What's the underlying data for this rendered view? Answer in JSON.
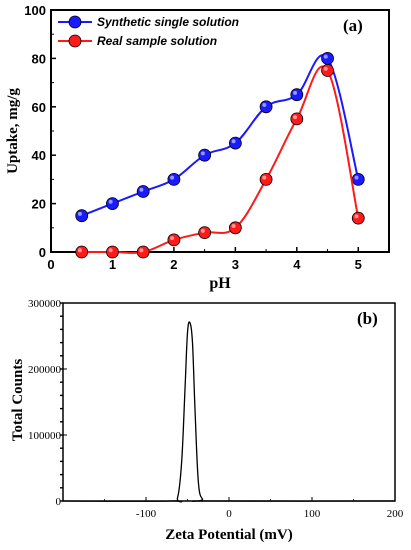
{
  "chart_data": [
    {
      "type": "line",
      "panel_label": "(a)",
      "xlabel": "pH",
      "ylabel": "Uptake, mg/g",
      "xlim": [
        0,
        5.5
      ],
      "ylim": [
        0,
        100
      ],
      "x_ticks": [
        0,
        1,
        2,
        3,
        4,
        5
      ],
      "y_ticks": [
        0,
        20,
        40,
        60,
        80,
        100
      ],
      "legend_position": "top-left",
      "series": [
        {
          "name": "Synthetic single solution",
          "color": "#1a1aff",
          "x": [
            0.5,
            1,
            1.5,
            2,
            2.5,
            3,
            3.5,
            4,
            4.5,
            5
          ],
          "y": [
            15,
            20,
            25,
            30,
            40,
            45,
            60,
            65,
            80,
            30
          ]
        },
        {
          "name": "Real sample solution",
          "color": "#ff1a1a",
          "x": [
            0.5,
            1,
            1.5,
            2,
            2.5,
            3,
            3.5,
            4,
            4.5,
            5
          ],
          "y": [
            0,
            0,
            0,
            5,
            8,
            10,
            30,
            55,
            75,
            14
          ]
        }
      ]
    },
    {
      "type": "line",
      "panel_label": "(b)",
      "xlabel": "Zeta Potential (mV)",
      "ylabel": "Total Counts",
      "xlim": [
        -200,
        200
      ],
      "ylim": [
        0,
        300000
      ],
      "x_ticks": [
        -100,
        0,
        100,
        200
      ],
      "y_ticks": [
        0,
        100000,
        200000,
        300000
      ],
      "series": [
        {
          "color": "#000000",
          "x": [
            -200,
            -70,
            -62,
            -57,
            -53,
            -50,
            -47,
            -44,
            -41,
            -37,
            -32,
            -24,
            200
          ],
          "y": [
            0,
            0,
            5000,
            60000,
            170000,
            255000,
            270000,
            240000,
            140000,
            30000,
            3000,
            0,
            0
          ]
        }
      ]
    }
  ]
}
